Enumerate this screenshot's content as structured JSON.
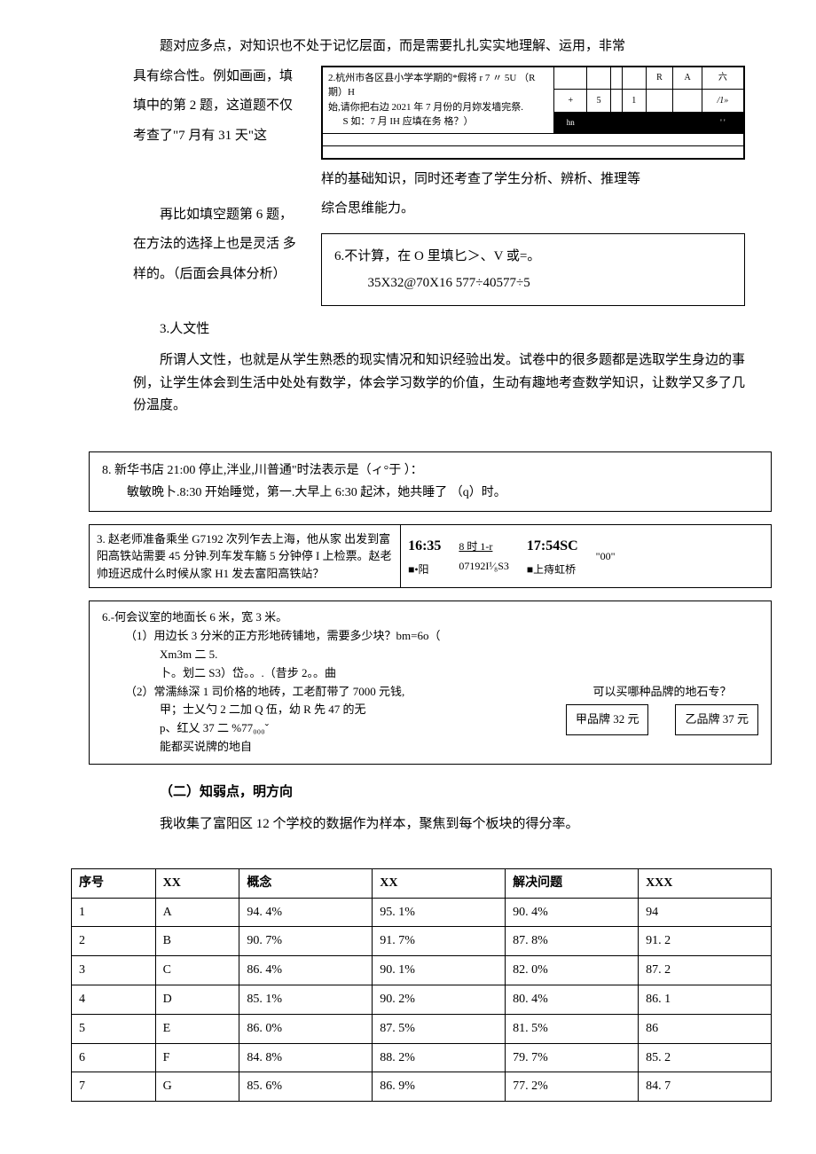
{
  "intro_para": "题对应多点，对知识也不处于记忆层面，而是需要扎扎实实地理解、运用，非常",
  "intro_line2": "具有综合性。例如画画，填",
  "intro_line3": "填中的第 2 题，这道题不仅",
  "intro_line4": "考查了\"7 月有 31 天\"这",
  "calendar": {
    "q_line1": "2.杭州市各区县小学本学期的*假将 r 7 〃 5U （R 期）H",
    "q_line2": "始,请你把右边 2021 年 7 月份的月妳发墙完祭.",
    "q_line3": "S 如：7 月 IH 应填在务 格？）",
    "headers": [
      "",
      "",
      "",
      "",
      "R",
      "A",
      "六"
    ],
    "row2": [
      "+",
      "5",
      "",
      "1",
      "",
      "",
      "/1»"
    ],
    "row3_left": "hn",
    "row3_marks": "' '"
  },
  "middle_right_para1": "样的基础知识，同时还考查了学生分析、辨析、推理等",
  "middle_right_para2": "综合思维能力。",
  "middle_left_line1": "再比如填空题第 6 题，",
  "middle_left_line2": "在方法的选择上也是灵活 多",
  "middle_left_line3": "样的。（后面会具体分析）",
  "q6": {
    "line1": "6.不计算，在 O 里填匕＞、V 或=。",
    "line2": "35X32@70X16  577÷40577÷5"
  },
  "section3_title": "3.人文性",
  "section3_para": "所谓人文性，也就是从学生熟悉的现实情况和知识经验出发。试卷中的很多题都是选取学生身边的事例，让学生体会到生活中处处有数学，体会学习数学的价值，生动有趣地考查数学知识，让数学又多了几份温度。",
  "q8": {
    "line1": "8. 新华书店 21:00 停止,泮业,川普通\"时法表示是（ィ°于                           ）：",
    "line2": "敏敏晩卜.8:30 开始睡觉，第一.大早上 6:30 起沐，她共睡了 （q）时。"
  },
  "q3_train": {
    "left": "3. 赵老师准备乘坐 G7192 次列乍去上海，他从家 出发到富阳高铁站需要 45 分钟.列车发车觞 5 分钟停 I 上检票。赵老帅班迟成什么时候从家 H1 发去富阳高铁站？",
    "col1_big": "16:35",
    "col1_small": "■•阳",
    "col2_top": "8 时 1-r",
    "col2_bot": "07192I¹⁄₈S3",
    "col3_big": "17:54SC",
    "col3_small": "■上痔虹桥",
    "col4": "\"00\""
  },
  "q6_meeting": {
    "title": "6.-何会议室的地面长 6 米，宽 3 米。",
    "part1_line1": "（1）用边长 3 分米的正方形地砖铺地，需要多少块？bm=6o（",
    "part1_line2": "Xm3m 二 5.",
    "part1_line3": "卜。划二 S3）岱。。.（昔步 2。。曲",
    "part2_line1": "（2）常濡絲深 1 司价格的地砖，工老酊带了 7000 元钱,",
    "part2_line2": "甲；士乂勺 2 二加 Q         伍，幼 R 先 47 的无",
    "part2_line3": "p、红乂 37 二                %77₀₀₀ˇ",
    "part2_line4": "能都买说牌的地自",
    "right_q": "可以买哪种品牌的地石专？",
    "brand_a": "甲品牌 32 元",
    "brand_b": "乙品牌 37 元"
  },
  "heading2": "（二）知弱点，明方向",
  "data_intro": "我收集了富阳区 12 个学校的数据作为样本，聚焦到每个板块的得分率。",
  "score_table": {
    "headers": [
      "序号",
      "XX",
      "概念",
      "XX",
      "解决问题",
      "XXX"
    ],
    "rows": [
      [
        "1",
        "A",
        "94. 4%",
        "95. 1%",
        "90. 4%",
        "94"
      ],
      [
        "2",
        "B",
        "90. 7%",
        "91. 7%",
        "87. 8%",
        "91. 2"
      ],
      [
        "3",
        "C",
        "86. 4%",
        "90. 1%",
        "82. 0%",
        "87. 2"
      ],
      [
        "4",
        "D",
        "85. 1%",
        "90. 2%",
        "80. 4%",
        "86. 1"
      ],
      [
        "5",
        "E",
        "86. 0%",
        "87. 5%",
        "81. 5%",
        "86"
      ],
      [
        "6",
        "F",
        "84. 8%",
        "88. 2%",
        "79. 7%",
        "85. 2"
      ],
      [
        "7",
        "G",
        "85. 6%",
        "86. 9%",
        "77. 2%",
        "84. 7"
      ]
    ],
    "col_widths": [
      "12%",
      "12%",
      "19%",
      "19%",
      "19%",
      "19%"
    ]
  }
}
